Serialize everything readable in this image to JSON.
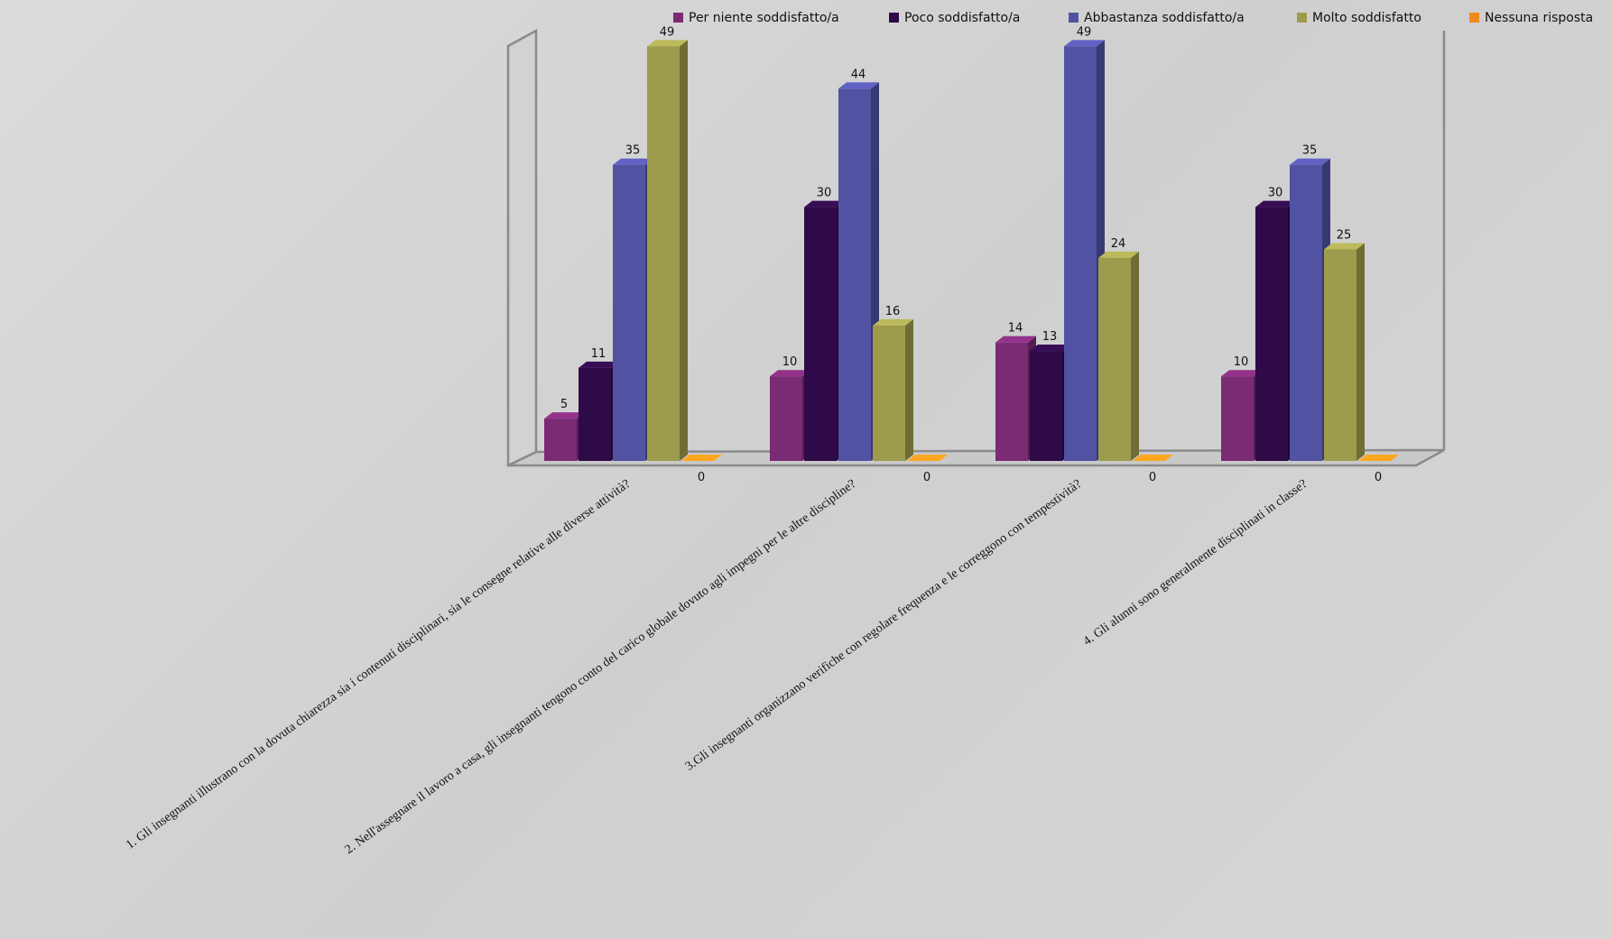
{
  "chart_data": {
    "type": "bar3d",
    "categories": [
      "1. Gli insegnanti illustrano con la dovuta chiarezza sia i contenuti disciplinari, sia le consegne relative alle diverse attività?",
      "2. Nell'assegnare il lavoro a casa, gli insegnanti tengono conto del carico globale dovuto agli impegni per le altre discipline?",
      "3.Gli insegnanti organizzano verifiche con regolare frequenza e le correggono con tempestività?",
      "4. Gli alunni sono generalmente disciplinati in classe?"
    ],
    "series": [
      {
        "name": "Per niente soddisfatto/a",
        "color": "#7b2a74",
        "values": [
          5,
          10,
          14,
          10
        ]
      },
      {
        "name": "Poco soddisfatto/a",
        "color": "#2e0b48",
        "values": [
          11,
          30,
          13,
          30
        ]
      },
      {
        "name": "Abbastanza soddisfatto/a",
        "color": "#5252a3",
        "values": [
          35,
          44,
          49,
          35
        ]
      },
      {
        "name": "Molto soddisfatto",
        "color": "#9d9b4c",
        "values": [
          49,
          16,
          24,
          25
        ]
      },
      {
        "name": "Nessuna risposta",
        "color": "#f08a1a",
        "values": [
          0,
          0,
          0,
          0
        ]
      }
    ],
    "ylim": [
      0,
      50
    ]
  }
}
